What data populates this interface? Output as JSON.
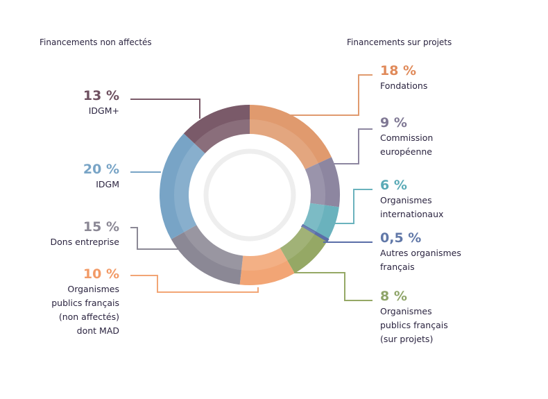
{
  "chart_data": {
    "type": "pie",
    "variant": "donut",
    "title": "",
    "group_headers": {
      "left": "Financements non affectés",
      "right": "Financements sur projets"
    },
    "slices": [
      {
        "label": "Fondations",
        "lines": [
          "Fondations"
        ],
        "value": 18,
        "value_label": "18 %",
        "color": "#e09a6e",
        "text_color": "#e08a5a",
        "group": "right"
      },
      {
        "label": "Commission européenne",
        "lines": [
          "Commission",
          "européenne"
        ],
        "value": 9,
        "value_label": "9 %",
        "color": "#8d86a0",
        "text_color": "#7f7894",
        "group": "right"
      },
      {
        "label": "Organismes internationaux",
        "lines": [
          "Organismes",
          "internationaux"
        ],
        "value": 6,
        "value_label": "6 %",
        "color": "#6ab2bd",
        "text_color": "#5aaab6",
        "group": "right"
      },
      {
        "label": "Autres organismes français",
        "lines": [
          "Autres organismes",
          "français"
        ],
        "value": 0.5,
        "value_label": "0,5 %",
        "color": "#5a6ea8",
        "text_color": "#6178a8",
        "group": "right"
      },
      {
        "label": "Organismes publics français (sur projets)",
        "lines": [
          "Organismes",
          "publics français",
          "(sur projets)"
        ],
        "value": 8,
        "value_label": "8 %",
        "color": "#95a865",
        "text_color": "#8ea468",
        "group": "right"
      },
      {
        "label": "Organismes publics français (non affectés) dont MAD",
        "lines": [
          "Organismes",
          "publics français",
          "(non affectés)",
          "dont MAD"
        ],
        "value": 10,
        "value_label": "10 %",
        "color": "#f2a575",
        "text_color": "#f29a66",
        "group": "left"
      },
      {
        "label": "Dons entreprise",
        "lines": [
          "Dons entreprise"
        ],
        "value": 15,
        "value_label": "15 %",
        "color": "#8b8895",
        "text_color": "#8b8895",
        "group": "left"
      },
      {
        "label": "IDGM",
        "lines": [
          "IDGM"
        ],
        "value": 20,
        "value_label": "20 %",
        "color": "#78a4c6",
        "text_color": "#78a4c6",
        "group": "left"
      },
      {
        "label": "IDGM+",
        "lines": [
          "IDGM+"
        ],
        "value": 13,
        "value_label": "13 %",
        "color": "#7a5a69",
        "text_color": "#6e5060",
        "group": "left"
      }
    ],
    "legend": "callouts",
    "start_angle": "top",
    "direction": "clockwise"
  }
}
